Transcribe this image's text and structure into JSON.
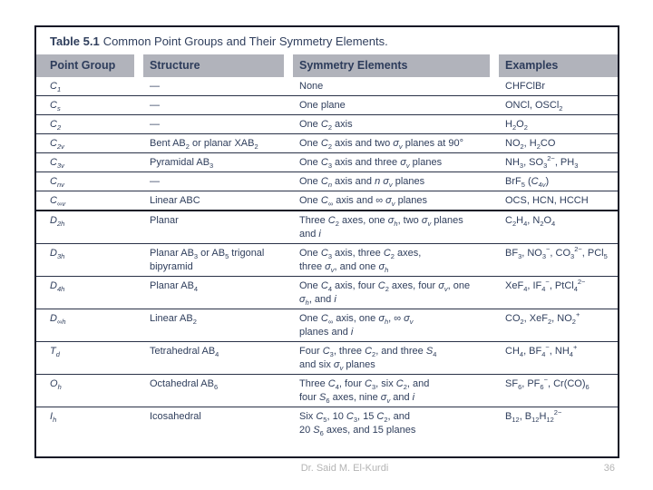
{
  "table": {
    "label": "Table 5.1",
    "caption": "Common Point Groups and Their Symmetry Elements.",
    "columns": [
      "Point Group",
      "Structure",
      "Symmetry Elements",
      "Examples"
    ],
    "rows": [
      {
        "group": "*C*~1~",
        "structure": "—",
        "symmetry": "None",
        "examples": "CHFClBr",
        "section_end": false
      },
      {
        "group": "*C*~*s*~",
        "structure": "—",
        "symmetry": "One plane",
        "examples": "ONCl, OSCl~2~",
        "section_end": false
      },
      {
        "group": "*C*~2~",
        "structure": "—",
        "symmetry": "One *C*~2~ axis",
        "examples": "H~2~O~2~",
        "section_end": false
      },
      {
        "group": "*C*~2*v*~",
        "structure": "Bent AB~2~ or planar XAB~2~",
        "symmetry": "One *C*~2~ axis and two *σ*~*v*~ planes at 90°",
        "examples": "NO~2~, H~2~CO",
        "section_end": false
      },
      {
        "group": "*C*~3*v*~",
        "structure": "Pyramidal AB~3~",
        "symmetry": "One *C*~3~ axis and three *σ*~*v*~ planes",
        "examples": "NH~3~, SO~3~^2−^, PH~3~",
        "section_end": false
      },
      {
        "group": "*C*~*nv*~",
        "structure": "—",
        "symmetry": "One *C*~*n*~ axis and *n* *σ*~*v*~ planes",
        "examples": "BrF~5~ (*C*~4*v*~)",
        "section_end": false
      },
      {
        "group": "*C*~∞*v*~",
        "structure": "Linear ABC",
        "symmetry": "One *C*~∞~ axis and ∞ *σ*~*v*~ planes",
        "examples": "OCS, HCN, HCCH",
        "section_end": true
      },
      {
        "group": "*D*~2*h*~",
        "structure": "Planar",
        "symmetry": "Three *C*~2~ axes, one *σ*~*h*~, two *σ*~*v*~ planes\nand *i*",
        "examples": "C~2~H~4~, N~2~O~4~",
        "section_end": false
      },
      {
        "group": "*D*~3*h*~",
        "structure": "Planar AB~3~ or AB~5~ trigonal\nbipyramid",
        "symmetry": "One *C*~3~ axis, three *C*~2~ axes,\nthree *σ*~*v*~, and one *σ*~*h*~",
        "examples": "BF~3~, NO~3~^−^, CO~3~^2−^, PCl~5~",
        "section_end": false
      },
      {
        "group": "*D*~4*h*~",
        "structure": "Planar AB~4~",
        "symmetry": "One *C*~4~ axis, four *C*~2~ axes, four *σ*~*v*~, one\n*σ*~*h*~, and *i*",
        "examples": "XeF~4~, IF~4~^−^, PtCl~4~^2−^",
        "section_end": false
      },
      {
        "group": "*D*~∞*h*~",
        "structure": "Linear AB~2~",
        "symmetry": "One *C*~∞~ axis, one *σ*~*h*~, ∞ *σ*~*v*~\nplanes and *i*",
        "examples": "CO~2~, XeF~2~, NO~2~^+^",
        "section_end": false
      },
      {
        "group": "*T*~*d*~",
        "structure": "Tetrahedral AB~4~",
        "symmetry": "Four *C*~3~, three *C*~2~, and three *S*~4~\nand six *σ*~*v*~ planes",
        "examples": "CH~4~, BF~4~^−^, NH~4~^+^",
        "section_end": false
      },
      {
        "group": "*O*~*h*~",
        "structure": "Octahedral AB~6~",
        "symmetry": "Three *C*~4~, four *C*~3~, six *C*~2~, and\nfour *S*~6~ axes, nine *σ*~*v*~ and *i*",
        "examples": "SF~6~, PF~6~^−^, Cr(CO)~6~",
        "section_end": false
      },
      {
        "group": "*I*~*h*~",
        "structure": "Icosahedral",
        "symmetry": "Six *C*~5~, 10 *C*~3~, 15 *C*~2~, and\n20 *S*~6~ axes, and 15 planes",
        "examples": "B~12~, B~12~H~12~^2−^",
        "section_end": false
      }
    ]
  },
  "footer": {
    "author": "Dr. Said M. El-Kurdi",
    "page": "36"
  },
  "colors": {
    "text_navy": "#2f3e5c",
    "header_bg": "#b1b3bb",
    "border_dark": "#141826",
    "row_rule": "#2a3248",
    "footer_gray": "#b4b4b4",
    "page_bg": "#ffffff"
  }
}
